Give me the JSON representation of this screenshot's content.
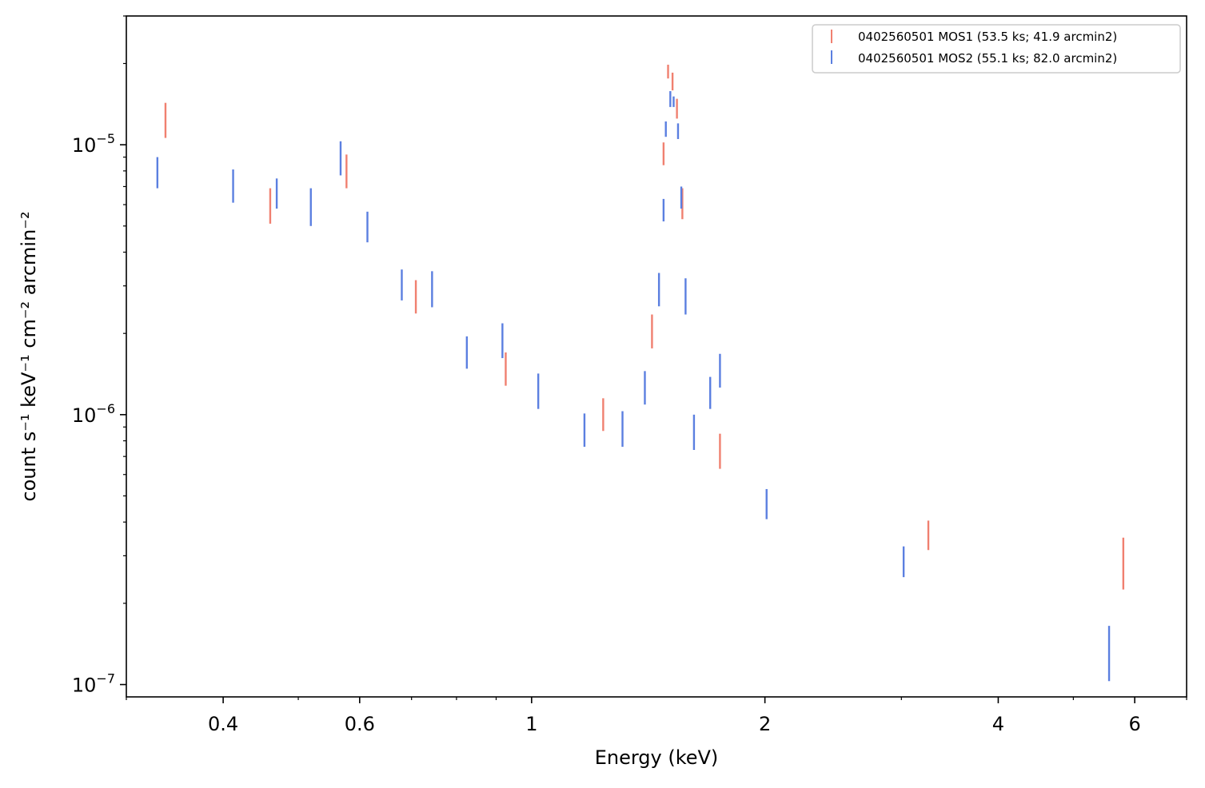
{
  "chart_data": {
    "type": "scatter",
    "plot_style": "vertical error bars only (no markers)",
    "xlabel": "Energy (keV)",
    "ylabel": "count s⁻¹ keV⁻¹ cm⁻² arcmin⁻²",
    "xscale": "log",
    "yscale": "log",
    "xlim": [
      0.3,
      7.0
    ],
    "ylim": [
      9e-08,
      3e-05
    ],
    "x_ticks": [
      {
        "value": 0.4,
        "label": "0.4"
      },
      {
        "value": 0.6,
        "label": "0.6"
      },
      {
        "value": 1,
        "label": "1"
      },
      {
        "value": 2,
        "label": "2"
      },
      {
        "value": 4,
        "label": "4"
      },
      {
        "value": 6,
        "label": "6"
      }
    ],
    "x_minor_ticks": [
      0.3,
      0.5,
      0.7,
      0.8,
      0.9,
      3,
      5,
      7
    ],
    "y_ticks": [
      {
        "value": 1e-07,
        "mantissa": "10",
        "exponent": "−7"
      },
      {
        "value": 1e-06,
        "mantissa": "10",
        "exponent": "−6"
      },
      {
        "value": 1e-05,
        "mantissa": "10",
        "exponent": "−5"
      }
    ],
    "y_minor_ticks": [
      2e-07,
      3e-07,
      4e-07,
      5e-07,
      6e-07,
      7e-07,
      8e-07,
      9e-07,
      2e-06,
      3e-06,
      4e-06,
      5e-06,
      6e-06,
      7e-06,
      8e-06,
      9e-06,
      2e-05,
      3e-05
    ],
    "grid": false,
    "legend_position": "top-right",
    "series": [
      {
        "name": "0402560501 MOS1 (53.5 ks; 41.9 arcmin2)",
        "color": "#f08070",
        "points": [
          {
            "x": 0.337,
            "ylo": 1.06e-05,
            "yhi": 1.43e-05
          },
          {
            "x": 0.46,
            "ylo": 5.1e-06,
            "yhi": 6.9e-06
          },
          {
            "x": 0.577,
            "ylo": 6.9e-06,
            "yhi": 9.2e-06
          },
          {
            "x": 0.709,
            "ylo": 2.37e-06,
            "yhi": 3.15e-06
          },
          {
            "x": 0.926,
            "ylo": 1.28e-06,
            "yhi": 1.7e-06
          },
          {
            "x": 1.237,
            "ylo": 8.7e-07,
            "yhi": 1.15e-06
          },
          {
            "x": 1.43,
            "ylo": 1.76e-06,
            "yhi": 2.35e-06
          },
          {
            "x": 1.48,
            "ylo": 8.4e-06,
            "yhi": 1.02e-05
          },
          {
            "x": 1.5,
            "ylo": 1.76e-05,
            "yhi": 1.98e-05
          },
          {
            "x": 1.52,
            "ylo": 1.59e-05,
            "yhi": 1.85e-05
          },
          {
            "x": 1.54,
            "ylo": 1.25e-05,
            "yhi": 1.48e-05
          },
          {
            "x": 1.565,
            "ylo": 5.3e-06,
            "yhi": 6.9e-06
          },
          {
            "x": 1.75,
            "ylo": 6.3e-07,
            "yhi": 8.5e-07
          },
          {
            "x": 3.25,
            "ylo": 3.15e-07,
            "yhi": 4.05e-07
          },
          {
            "x": 5.8,
            "ylo": 2.25e-07,
            "yhi": 3.5e-07
          }
        ]
      },
      {
        "name": "0402560501 MOS2 (55.1 ks; 82.0 arcmin2)",
        "color": "#5b7fe0",
        "points": [
          {
            "x": 0.329,
            "ylo": 6.9e-06,
            "yhi": 9e-06
          },
          {
            "x": 0.412,
            "ylo": 6.1e-06,
            "yhi": 8.1e-06
          },
          {
            "x": 0.469,
            "ylo": 5.8e-06,
            "yhi": 7.5e-06
          },
          {
            "x": 0.519,
            "ylo": 5e-06,
            "yhi": 6.9e-06
          },
          {
            "x": 0.567,
            "ylo": 7.7e-06,
            "yhi": 1.03e-05
          },
          {
            "x": 0.614,
            "ylo": 4.35e-06,
            "yhi": 5.65e-06
          },
          {
            "x": 0.68,
            "ylo": 2.65e-06,
            "yhi": 3.45e-06
          },
          {
            "x": 0.744,
            "ylo": 2.5e-06,
            "yhi": 3.4e-06
          },
          {
            "x": 0.825,
            "ylo": 1.48e-06,
            "yhi": 1.95e-06
          },
          {
            "x": 0.917,
            "ylo": 1.62e-06,
            "yhi": 2.18e-06
          },
          {
            "x": 1.02,
            "ylo": 1.05e-06,
            "yhi": 1.42e-06
          },
          {
            "x": 1.17,
            "ylo": 7.6e-07,
            "yhi": 1.01e-06
          },
          {
            "x": 1.31,
            "ylo": 7.6e-07,
            "yhi": 1.03e-06
          },
          {
            "x": 1.4,
            "ylo": 1.09e-06,
            "yhi": 1.45e-06
          },
          {
            "x": 1.46,
            "ylo": 2.52e-06,
            "yhi": 3.35e-06
          },
          {
            "x": 1.48,
            "ylo": 5.2e-06,
            "yhi": 6.3e-06
          },
          {
            "x": 1.49,
            "ylo": 1.07e-05,
            "yhi": 1.22e-05
          },
          {
            "x": 1.51,
            "ylo": 1.38e-05,
            "yhi": 1.58e-05
          },
          {
            "x": 1.525,
            "ylo": 1.38e-05,
            "yhi": 1.51e-05
          },
          {
            "x": 1.545,
            "ylo": 1.05e-05,
            "yhi": 1.2e-05
          },
          {
            "x": 1.56,
            "ylo": 5.8e-06,
            "yhi": 7e-06
          },
          {
            "x": 1.58,
            "ylo": 2.35e-06,
            "yhi": 3.2e-06
          },
          {
            "x": 1.62,
            "ylo": 7.4e-07,
            "yhi": 1e-06
          },
          {
            "x": 1.7,
            "ylo": 1.05e-06,
            "yhi": 1.38e-06
          },
          {
            "x": 1.75,
            "ylo": 1.26e-06,
            "yhi": 1.68e-06
          },
          {
            "x": 2.01,
            "ylo": 4.1e-07,
            "yhi": 5.3e-07
          },
          {
            "x": 3.02,
            "ylo": 2.5e-07,
            "yhi": 3.25e-07
          },
          {
            "x": 5.56,
            "ylo": 1.03e-07,
            "yhi": 1.65e-07
          }
        ]
      }
    ]
  }
}
